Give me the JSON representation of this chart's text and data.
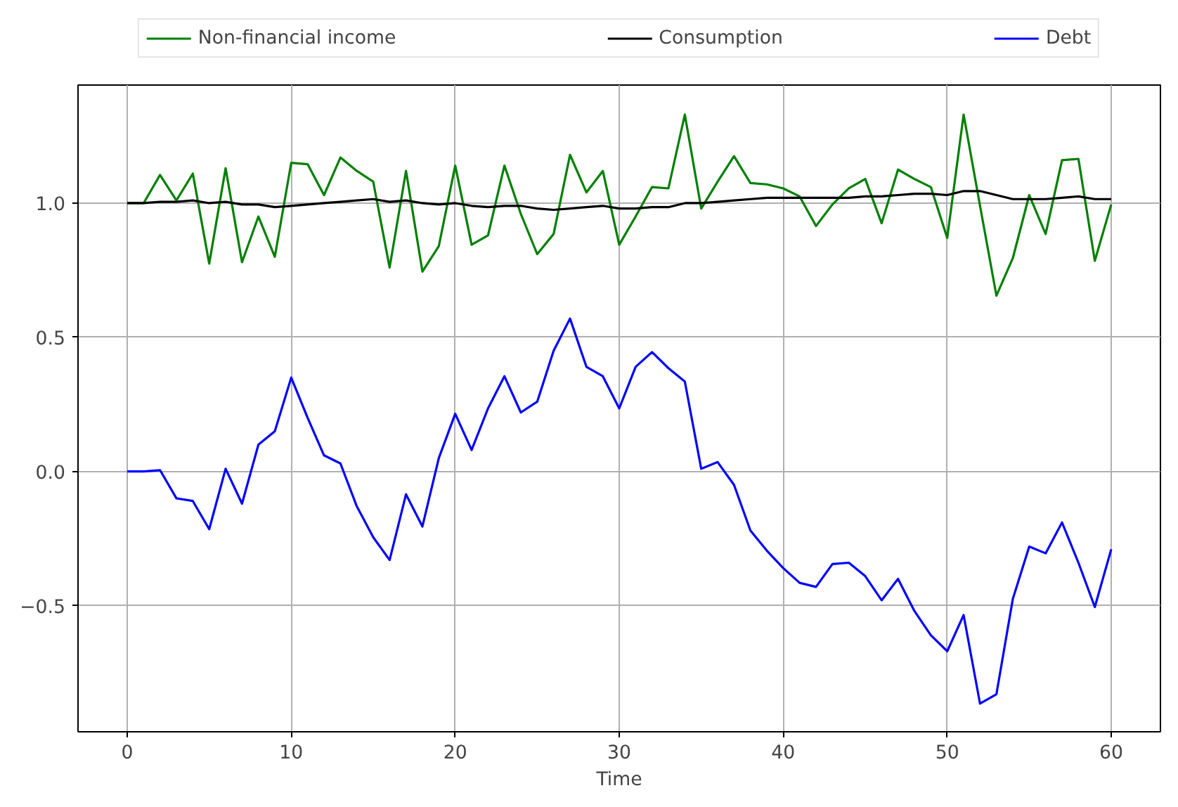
{
  "chart_data": {
    "type": "line",
    "xlabel": "Time",
    "x": [
      0,
      1,
      2,
      3,
      4,
      5,
      6,
      7,
      8,
      9,
      10,
      11,
      12,
      13,
      14,
      15,
      16,
      17,
      18,
      19,
      20,
      21,
      22,
      23,
      24,
      25,
      26,
      27,
      28,
      29,
      30,
      31,
      32,
      33,
      34,
      35,
      36,
      37,
      38,
      39,
      40,
      41,
      42,
      43,
      44,
      45,
      46,
      47,
      48,
      49,
      50,
      51,
      52,
      53,
      54,
      55,
      56,
      57,
      58,
      59,
      60
    ],
    "series": [
      {
        "name": "Non-financial income",
        "color": "#008000",
        "values": [
          1.0,
          1.0,
          1.105,
          1.01,
          1.11,
          0.775,
          1.13,
          0.78,
          0.95,
          0.8,
          1.15,
          1.145,
          1.03,
          1.17,
          1.12,
          1.08,
          0.76,
          1.12,
          0.745,
          0.84,
          1.14,
          0.845,
          0.88,
          1.14,
          0.96,
          0.81,
          0.885,
          1.18,
          1.04,
          1.12,
          0.845,
          0.95,
          1.06,
          1.055,
          1.33,
          0.98,
          1.08,
          1.175,
          1.075,
          1.07,
          1.055,
          1.025,
          0.915,
          0.995,
          1.055,
          1.09,
          0.925,
          1.125,
          1.09,
          1.06,
          0.87,
          1.33,
          0.99,
          0.655,
          0.795,
          1.03,
          0.885,
          1.16,
          1.165,
          0.785,
          0.995
        ]
      },
      {
        "name": "Consumption",
        "color": "#000000",
        "values": [
          1.0,
          1.0,
          1.005,
          1.005,
          1.01,
          1.0,
          1.005,
          0.995,
          0.995,
          0.985,
          0.99,
          0.995,
          1.0,
          1.005,
          1.01,
          1.015,
          1.005,
          1.01,
          1.0,
          0.995,
          1.0,
          0.99,
          0.985,
          0.99,
          0.99,
          0.98,
          0.975,
          0.98,
          0.985,
          0.99,
          0.98,
          0.98,
          0.985,
          0.985,
          1.0,
          1.0,
          1.005,
          1.01,
          1.015,
          1.02,
          1.02,
          1.02,
          1.02,
          1.02,
          1.02,
          1.025,
          1.025,
          1.03,
          1.035,
          1.035,
          1.03,
          1.045,
          1.045,
          1.03,
          1.015,
          1.015,
          1.015,
          1.02,
          1.025,
          1.015,
          1.015
        ]
      },
      {
        "name": "Debt",
        "color": "#0000ff",
        "values": [
          0.0,
          0.0,
          0.005,
          -0.1,
          -0.11,
          -0.215,
          0.01,
          -0.12,
          0.1,
          0.15,
          0.35,
          0.2,
          0.06,
          0.03,
          -0.13,
          -0.245,
          -0.33,
          -0.085,
          -0.205,
          0.05,
          0.215,
          0.08,
          0.235,
          0.355,
          0.22,
          0.26,
          0.45,
          0.57,
          0.39,
          0.355,
          0.235,
          0.39,
          0.445,
          0.385,
          0.335,
          0.01,
          0.035,
          -0.05,
          -0.22,
          -0.295,
          -0.36,
          -0.415,
          -0.43,
          -0.345,
          -0.34,
          -0.39,
          -0.48,
          -0.4,
          -0.52,
          -0.61,
          -0.67,
          -0.535,
          -0.865,
          -0.83,
          -0.475,
          -0.28,
          -0.305,
          -0.19,
          -0.34,
          -0.505,
          -0.29
        ]
      }
    ],
    "xlim": [
      -3,
      63
    ],
    "ylim": [
      -0.97,
      1.44
    ],
    "xticks": [
      0,
      10,
      20,
      30,
      40,
      50,
      60
    ],
    "yticks": [
      {
        "value": -0.5,
        "label": "−0.5"
      },
      {
        "value": 0.0,
        "label": "0.0"
      },
      {
        "value": 0.5,
        "label": "0.5"
      },
      {
        "value": 1.0,
        "label": "1.0"
      }
    ],
    "grid": true,
    "legend": "top",
    "line_style": "solid",
    "marker": "none"
  }
}
